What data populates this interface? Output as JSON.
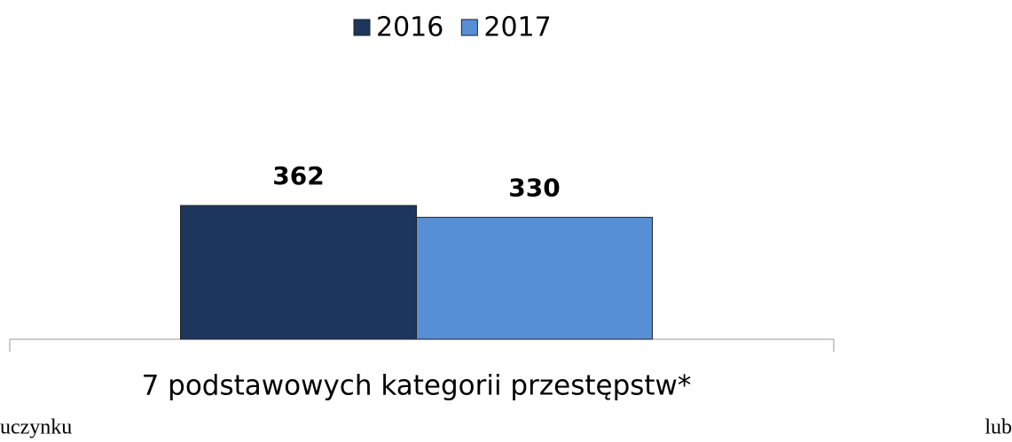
{
  "chart_data": {
    "type": "bar",
    "categories": [
      "7 podstawowych kategorii przestępstw*"
    ],
    "series": [
      {
        "name": "2016",
        "color": "#1c365e",
        "values": [
          362
        ]
      },
      {
        "name": "2017",
        "color": "#578fd6",
        "values": [
          330
        ]
      }
    ],
    "legend": "top"
  },
  "page_text": [
    "uczynku",
    "lub"
  ]
}
